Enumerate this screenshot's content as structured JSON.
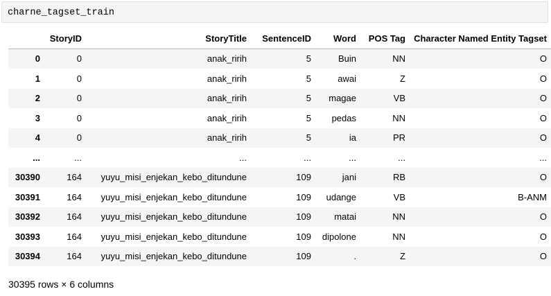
{
  "cell": {
    "code": "charne_tagset_train"
  },
  "table": {
    "columns": [
      "",
      "StoryID",
      "StoryTitle",
      "SentenceID",
      "Word",
      "POS Tag",
      "Character Named Entity Tagset"
    ],
    "rows": [
      [
        "0",
        "0",
        "anak_ririh",
        "5",
        "Buin",
        "NN",
        "O"
      ],
      [
        "1",
        "0",
        "anak_ririh",
        "5",
        "awai",
        "Z",
        "O"
      ],
      [
        "2",
        "0",
        "anak_ririh",
        "5",
        "magae",
        "VB",
        "O"
      ],
      [
        "3",
        "0",
        "anak_ririh",
        "5",
        "pedas",
        "NN",
        "O"
      ],
      [
        "4",
        "0",
        "anak_ririh",
        "5",
        "ia",
        "PR",
        "O"
      ],
      [
        "...",
        "...",
        "...",
        "...",
        "...",
        "...",
        "..."
      ],
      [
        "30390",
        "164",
        "yuyu_misi_enjekan_kebo_ditundune",
        "109",
        "jani",
        "RB",
        "O"
      ],
      [
        "30391",
        "164",
        "yuyu_misi_enjekan_kebo_ditundune",
        "109",
        "udange",
        "VB",
        "B-ANM"
      ],
      [
        "30392",
        "164",
        "yuyu_misi_enjekan_kebo_ditundune",
        "109",
        "matai",
        "NN",
        "O"
      ],
      [
        "30393",
        "164",
        "yuyu_misi_enjekan_kebo_ditundune",
        "109",
        "dipolone",
        "NN",
        "O"
      ],
      [
        "30394",
        "164",
        "yuyu_misi_enjekan_kebo_ditundune",
        "109",
        ".",
        "Z",
        "O"
      ]
    ]
  },
  "footer": {
    "summary": "30395 rows × 6 columns"
  }
}
